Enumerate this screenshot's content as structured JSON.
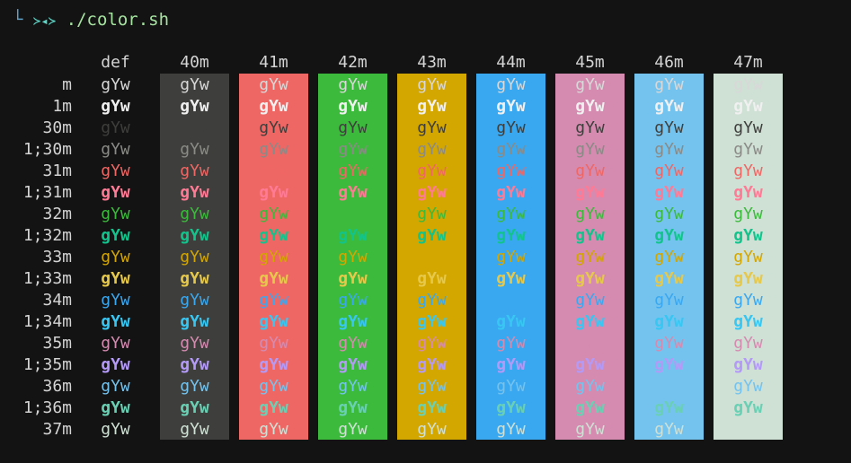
{
  "terminal": {
    "prompt_corner": "└",
    "prompt_symbol": "≻◂≻",
    "command": "./color.sh"
  },
  "sample_text": "gYw",
  "columns": [
    {
      "label": "def",
      "bg": null
    },
    {
      "label": "40m",
      "bg": "#3e3f3c"
    },
    {
      "label": "41m",
      "bg": "#ef6765"
    },
    {
      "label": "42m",
      "bg": "#3cba3c"
    },
    {
      "label": "43m",
      "bg": "#d3a600"
    },
    {
      "label": "44m",
      "bg": "#3aa8f0"
    },
    {
      "label": "45m",
      "bg": "#d58bb0"
    },
    {
      "label": "46m",
      "bg": "#74c3ef"
    },
    {
      "label": "47m",
      "bg": "#cfe0d5"
    }
  ],
  "rows": [
    {
      "label": "m",
      "fg": "#d8d8d8",
      "bold": false
    },
    {
      "label": "1m",
      "fg": "#f0f0f0",
      "bold": true
    },
    {
      "label": "30m",
      "fg": "#3e3f3c",
      "bold": false
    },
    {
      "label": "1;30m",
      "fg": "#8a8a86",
      "bold": false
    },
    {
      "label": "31m",
      "fg": "#ef6765",
      "bold": false
    },
    {
      "label": "1;31m",
      "fg": "#ff7a94",
      "bold": true
    },
    {
      "label": "32m",
      "fg": "#3cba3c",
      "bold": false
    },
    {
      "label": "1;32m",
      "fg": "#12c48c",
      "bold": true
    },
    {
      "label": "33m",
      "fg": "#d3a600",
      "bold": false
    },
    {
      "label": "1;33m",
      "fg": "#e6c84a",
      "bold": true
    },
    {
      "label": "34m",
      "fg": "#3aa8f0",
      "bold": false
    },
    {
      "label": "1;34m",
      "fg": "#38c6f2",
      "bold": true
    },
    {
      "label": "35m",
      "fg": "#d58bb0",
      "bold": false
    },
    {
      "label": "1;35m",
      "fg": "#b39af7",
      "bold": true
    },
    {
      "label": "36m",
      "fg": "#74c3ef",
      "bold": false
    },
    {
      "label": "1;36m",
      "fg": "#6ad0b4",
      "bold": true
    },
    {
      "label": "37m",
      "fg": "#cfe0d5",
      "bold": false
    }
  ]
}
